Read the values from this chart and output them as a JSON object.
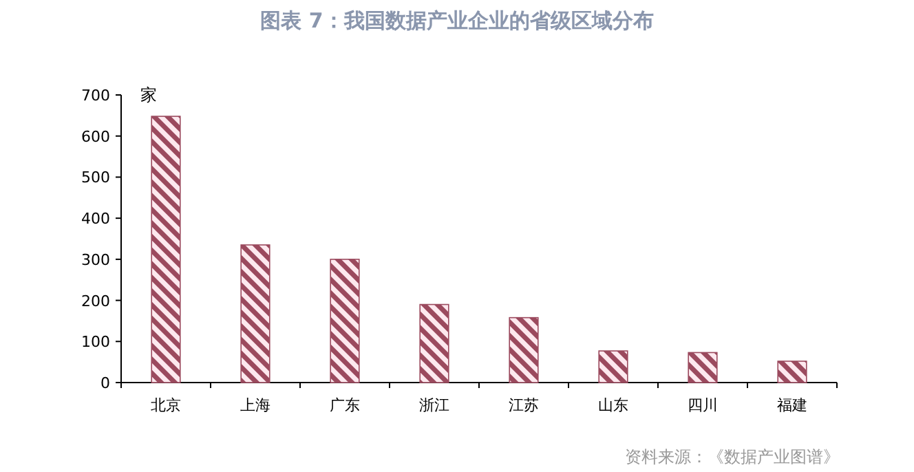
{
  "chart_data": {
    "type": "bar",
    "title": "图表 7：我国数据产业企业的省级区域分布",
    "ylabel": "家",
    "categories": [
      "北京",
      "上海",
      "广东",
      "浙江",
      "江苏",
      "山东",
      "四川",
      "福建"
    ],
    "values": [
      648,
      335,
      300,
      190,
      158,
      77,
      73,
      52
    ],
    "color": "#9b4a5e",
    "ylim": [
      0,
      700
    ],
    "yticks": [
      0,
      100,
      200,
      300,
      400,
      500,
      600,
      700
    ],
    "grid": false,
    "annotations": [
      "资料来源：《数据产业图谱》"
    ]
  }
}
